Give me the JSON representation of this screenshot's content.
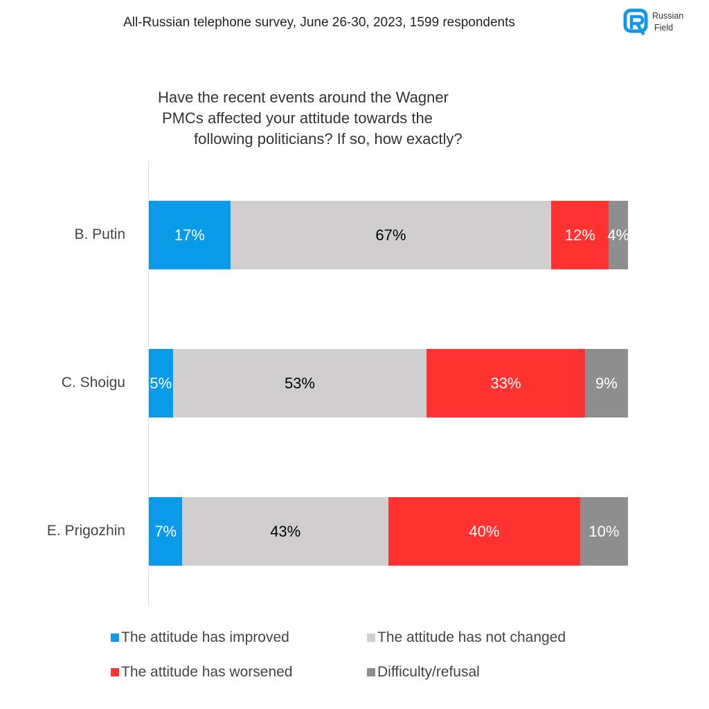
{
  "header": {
    "subtitle": "All-Russian telephone survey, June 26-30, 2023, 1599 respondents",
    "logo_line1": "Russian",
    "logo_line2": "Field"
  },
  "chart_data": {
    "type": "bar",
    "orientation": "horizontal-stacked-100",
    "title_lines": [
      "Have the recent events around the Wagner",
      "PMCs affected your attitude towards the",
      "following politicians? If so, how exactly?"
    ],
    "categories": [
      "B. Putin",
      "C. Shoigu",
      "E. Prigozhin"
    ],
    "series": [
      {
        "name": "The attitude has improved",
        "color": "#0a9be8",
        "label_color": "#ffffff",
        "values": [
          17,
          5,
          7
        ]
      },
      {
        "name": "The attitude has not changed",
        "color": "#d0cece",
        "label_color": "#000000",
        "values": [
          67,
          53,
          43
        ]
      },
      {
        "name": "The attitude has worsened",
        "color": "#ff3232",
        "label_color": "#ffffff",
        "values": [
          12,
          33,
          40
        ]
      },
      {
        "name": "Difficulty/refusal",
        "color": "#8e8e8e",
        "label_color": "#ffffff",
        "values": [
          4,
          9,
          10
        ]
      }
    ],
    "value_suffix": "%",
    "xlim": [
      0,
      100
    ],
    "legend_position": "bottom"
  }
}
